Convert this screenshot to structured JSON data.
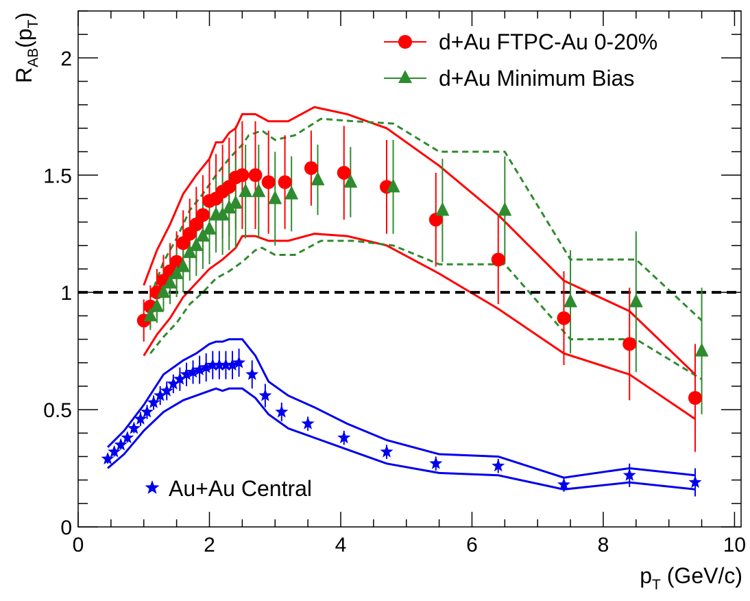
{
  "chart_data": {
    "type": "scatter",
    "title": "",
    "xlabel": {
      "main": "p",
      "sub": "T",
      "rest": " (GeV/c)"
    },
    "ylabel": {
      "main": "R",
      "sub": "AB",
      "rest": "(p",
      "sub2": "T",
      "end": ")"
    },
    "xlim": [
      0,
      10.1
    ],
    "ylim": [
      0,
      2.2
    ],
    "x_ticks": [
      0,
      2,
      4,
      6,
      8,
      10
    ],
    "x_tick_labels": [
      "0",
      "2",
      "4",
      "6",
      "8",
      "10"
    ],
    "y_ticks": [
      0,
      0.5,
      1,
      1.5,
      2
    ],
    "y_tick_labels": [
      "0",
      "0.5",
      "1",
      "1.5",
      "2"
    ],
    "reference_line": {
      "y": 1.0,
      "style": "dashed",
      "color": "#000000"
    },
    "legend": [
      {
        "label": "d+Au FTPC-Au 0-20%",
        "marker": "circle",
        "color": "#ff0000"
      },
      {
        "label": "d+Au Minimum Bias",
        "marker": "triangle",
        "color": "#2e8b2e"
      },
      {
        "label": "Au+Au Central",
        "marker": "star",
        "color": "#0000ee"
      }
    ],
    "series": [
      {
        "name": "d+Au FTPC-Au 0-20%",
        "marker": "circle",
        "color": "#ff0000",
        "x": [
          1.0,
          1.1,
          1.2,
          1.3,
          1.4,
          1.5,
          1.6,
          1.7,
          1.8,
          1.9,
          2.0,
          2.1,
          2.2,
          2.3,
          2.4,
          2.5,
          2.7,
          2.9,
          3.15,
          3.55,
          4.05,
          4.7,
          5.45,
          6.4,
          7.4,
          8.4,
          9.4
        ],
        "y": [
          0.88,
          0.94,
          1.0,
          1.05,
          1.09,
          1.13,
          1.21,
          1.25,
          1.29,
          1.33,
          1.39,
          1.4,
          1.43,
          1.45,
          1.49,
          1.5,
          1.5,
          1.47,
          1.47,
          1.53,
          1.51,
          1.45,
          1.31,
          1.14,
          0.89,
          0.78,
          0.55
        ],
        "err": [
          0.09,
          0.09,
          0.1,
          0.11,
          0.12,
          0.13,
          0.14,
          0.15,
          0.16,
          0.17,
          0.18,
          0.19,
          0.2,
          0.21,
          0.22,
          0.23,
          0.23,
          0.22,
          0.2,
          0.16,
          0.2,
          0.2,
          0.2,
          0.19,
          0.2,
          0.24,
          0.23
        ]
      },
      {
        "name": "d+Au Minimum Bias",
        "marker": "triangle",
        "color": "#2e8b2e",
        "x": [
          1.1,
          1.2,
          1.3,
          1.4,
          1.5,
          1.6,
          1.7,
          1.8,
          1.9,
          2.0,
          2.1,
          2.2,
          2.3,
          2.4,
          2.55,
          2.75,
          3.0,
          3.25,
          3.65,
          4.15,
          4.8,
          5.55,
          6.5,
          7.5,
          8.5,
          9.5
        ],
        "y": [
          0.9,
          0.94,
          1.0,
          1.04,
          1.08,
          1.11,
          1.17,
          1.2,
          1.24,
          1.27,
          1.33,
          1.33,
          1.36,
          1.38,
          1.43,
          1.43,
          1.4,
          1.42,
          1.48,
          1.47,
          1.45,
          1.35,
          1.35,
          0.96,
          0.96,
          0.75
        ],
        "err": [
          0.06,
          0.07,
          0.08,
          0.09,
          0.1,
          0.11,
          0.12,
          0.13,
          0.14,
          0.15,
          0.16,
          0.17,
          0.18,
          0.19,
          0.2,
          0.2,
          0.2,
          0.16,
          0.15,
          0.15,
          0.2,
          0.22,
          0.23,
          0.22,
          0.3,
          0.27
        ]
      },
      {
        "name": "Au+Au Central",
        "marker": "star",
        "color": "#0000ee",
        "x": [
          0.45,
          0.55,
          0.65,
          0.75,
          0.85,
          0.95,
          1.05,
          1.15,
          1.25,
          1.35,
          1.45,
          1.55,
          1.65,
          1.75,
          1.85,
          1.95,
          2.05,
          2.15,
          2.25,
          2.35,
          2.45,
          2.65,
          2.85,
          3.1,
          3.5,
          4.05,
          4.7,
          5.45,
          6.4,
          7.4,
          8.4,
          9.4
        ],
        "y": [
          0.29,
          0.32,
          0.35,
          0.38,
          0.42,
          0.46,
          0.49,
          0.53,
          0.56,
          0.58,
          0.61,
          0.63,
          0.65,
          0.66,
          0.67,
          0.68,
          0.69,
          0.69,
          0.69,
          0.69,
          0.7,
          0.65,
          0.56,
          0.49,
          0.44,
          0.38,
          0.32,
          0.27,
          0.26,
          0.18,
          0.22,
          0.19
        ],
        "err": [
          0.02,
          0.02,
          0.02,
          0.02,
          0.02,
          0.03,
          0.03,
          0.03,
          0.04,
          0.04,
          0.04,
          0.05,
          0.05,
          0.05,
          0.06,
          0.06,
          0.06,
          0.06,
          0.06,
          0.06,
          0.06,
          0.06,
          0.05,
          0.04,
          0.03,
          0.03,
          0.03,
          0.03,
          0.03,
          0.03,
          0.05,
          0.06
        ]
      }
    ],
    "bands": [
      {
        "name": "d+Au FTPC-Au 0-20% band",
        "color": "#ff0000",
        "style": "solid",
        "upper": [
          [
            1.0,
            1.03
          ],
          [
            1.2,
            1.18
          ],
          [
            1.4,
            1.29
          ],
          [
            1.6,
            1.42
          ],
          [
            1.8,
            1.5
          ],
          [
            2.0,
            1.57
          ],
          [
            2.1,
            1.64
          ],
          [
            2.2,
            1.64
          ],
          [
            2.3,
            1.68
          ],
          [
            2.4,
            1.7
          ],
          [
            2.5,
            1.76
          ],
          [
            2.7,
            1.76
          ],
          [
            2.9,
            1.73
          ],
          [
            3.2,
            1.73
          ],
          [
            3.6,
            1.79
          ],
          [
            4.1,
            1.76
          ],
          [
            4.7,
            1.7
          ],
          [
            5.5,
            1.54
          ],
          [
            6.4,
            1.33
          ],
          [
            7.4,
            1.05
          ],
          [
            8.4,
            0.92
          ],
          [
            9.4,
            0.65
          ]
        ],
        "lower": [
          [
            1.0,
            0.73
          ],
          [
            1.2,
            0.82
          ],
          [
            1.4,
            0.89
          ],
          [
            1.6,
            0.98
          ],
          [
            1.8,
            1.04
          ],
          [
            2.0,
            1.1
          ],
          [
            2.2,
            1.14
          ],
          [
            2.4,
            1.19
          ],
          [
            2.5,
            1.24
          ],
          [
            2.7,
            1.24
          ],
          [
            2.9,
            1.22
          ],
          [
            3.2,
            1.22
          ],
          [
            3.6,
            1.25
          ],
          [
            4.1,
            1.24
          ],
          [
            4.7,
            1.2
          ],
          [
            5.5,
            1.08
          ],
          [
            6.4,
            0.93
          ],
          [
            7.4,
            0.74
          ],
          [
            8.4,
            0.65
          ],
          [
            9.4,
            0.46
          ]
        ]
      },
      {
        "name": "d+Au Minimum Bias band",
        "color": "#2e8b2e",
        "style": "dashed",
        "upper": [
          [
            1.1,
            0.98
          ],
          [
            1.3,
            1.13
          ],
          [
            1.5,
            1.23
          ],
          [
            1.7,
            1.35
          ],
          [
            1.9,
            1.42
          ],
          [
            2.1,
            1.5
          ],
          [
            2.3,
            1.57
          ],
          [
            2.5,
            1.63
          ],
          [
            2.6,
            1.67
          ],
          [
            2.8,
            1.69
          ],
          [
            3.0,
            1.65
          ],
          [
            3.3,
            1.67
          ],
          [
            3.7,
            1.74
          ],
          [
            4.2,
            1.73
          ],
          [
            4.8,
            1.72
          ],
          [
            5.5,
            1.6
          ],
          [
            6.5,
            1.6
          ],
          [
            7.5,
            1.14
          ],
          [
            8.5,
            1.14
          ],
          [
            9.5,
            0.88
          ]
        ],
        "lower": [
          [
            1.1,
            0.74
          ],
          [
            1.3,
            0.81
          ],
          [
            1.5,
            0.87
          ],
          [
            1.7,
            0.95
          ],
          [
            1.9,
            1.0
          ],
          [
            2.1,
            1.06
          ],
          [
            2.3,
            1.09
          ],
          [
            2.5,
            1.13
          ],
          [
            2.7,
            1.18
          ],
          [
            2.8,
            1.19
          ],
          [
            3.0,
            1.16
          ],
          [
            3.3,
            1.16
          ],
          [
            3.7,
            1.22
          ],
          [
            4.2,
            1.22
          ],
          [
            4.8,
            1.2
          ],
          [
            5.5,
            1.12
          ],
          [
            6.5,
            1.12
          ],
          [
            7.5,
            0.8
          ],
          [
            8.5,
            0.8
          ],
          [
            9.5,
            0.63
          ]
        ]
      },
      {
        "name": "Au+Au Central band",
        "color": "#0000ee",
        "style": "solid",
        "upper": [
          [
            0.45,
            0.34
          ],
          [
            0.7,
            0.41
          ],
          [
            1.0,
            0.52
          ],
          [
            1.3,
            0.65
          ],
          [
            1.6,
            0.71
          ],
          [
            1.8,
            0.74
          ],
          [
            2.0,
            0.78
          ],
          [
            2.1,
            0.79
          ],
          [
            2.2,
            0.79
          ],
          [
            2.3,
            0.8
          ],
          [
            2.5,
            0.8
          ],
          [
            2.7,
            0.73
          ],
          [
            2.9,
            0.62
          ],
          [
            3.2,
            0.56
          ],
          [
            3.6,
            0.51
          ],
          [
            4.1,
            0.44
          ],
          [
            4.7,
            0.37
          ],
          [
            5.5,
            0.31
          ],
          [
            6.4,
            0.3
          ],
          [
            7.4,
            0.21
          ],
          [
            8.4,
            0.25
          ],
          [
            9.4,
            0.22
          ]
        ],
        "lower": [
          [
            0.45,
            0.25
          ],
          [
            0.7,
            0.31
          ],
          [
            1.0,
            0.41
          ],
          [
            1.3,
            0.49
          ],
          [
            1.6,
            0.54
          ],
          [
            1.8,
            0.56
          ],
          [
            2.0,
            0.58
          ],
          [
            2.1,
            0.59
          ],
          [
            2.2,
            0.58
          ],
          [
            2.3,
            0.59
          ],
          [
            2.5,
            0.59
          ],
          [
            2.7,
            0.55
          ],
          [
            2.9,
            0.48
          ],
          [
            3.2,
            0.42
          ],
          [
            3.6,
            0.38
          ],
          [
            4.1,
            0.33
          ],
          [
            4.7,
            0.27
          ],
          [
            5.5,
            0.23
          ],
          [
            6.4,
            0.22
          ],
          [
            7.4,
            0.16
          ],
          [
            8.4,
            0.19
          ],
          [
            9.4,
            0.16
          ]
        ]
      }
    ]
  }
}
